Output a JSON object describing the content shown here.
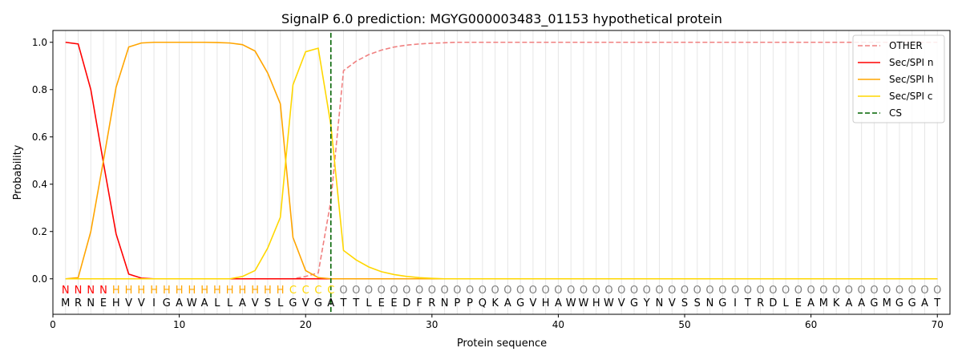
{
  "chart_data": {
    "type": "line",
    "title": "SignalP 6.0 prediction: MGYG000003483_01153 hypothetical protein",
    "xlabel": "Protein sequence",
    "ylabel": "Probability",
    "xlim": [
      0,
      71
    ],
    "ylim": [
      -0.15,
      1.05
    ],
    "xticks": [
      0,
      10,
      20,
      30,
      40,
      50,
      60,
      70
    ],
    "yticks": [
      "0.0",
      "0.2",
      "0.4",
      "0.6",
      "0.8",
      "1.0"
    ],
    "legend_position": "top-right",
    "sequence": [
      "M",
      "R",
      "N",
      "E",
      "H",
      "V",
      "V",
      "I",
      "G",
      "A",
      "W",
      "A",
      "L",
      "L",
      "A",
      "V",
      "S",
      "L",
      "G",
      "V",
      "G",
      "A",
      "T",
      "T",
      "L",
      "E",
      "E",
      "D",
      "F",
      "R",
      "N",
      "P",
      "P",
      "Q",
      "K",
      "A",
      "G",
      "V",
      "H",
      "A",
      "W",
      "W",
      "H",
      "W",
      "V",
      "G",
      "Y",
      "N",
      "V",
      "S",
      "S",
      "N",
      "G",
      "I",
      "T",
      "R",
      "D",
      "L",
      "E",
      "A",
      "M",
      "K",
      "A",
      "A",
      "G",
      "M",
      "G",
      "G",
      "A",
      "T"
    ],
    "labels": "NNNNHHHHHHHHHHHHHHCCCCOOOOOOOOOOOOOOOOOOOOOOOOOOOOOOOOOOOOOOOOOOOOOOOO",
    "label_colors": {
      "N": "#ff0000",
      "H": "#ffa500",
      "C": "#ffd700",
      "O": "#808080"
    },
    "series": [
      {
        "name": "OTHER",
        "color": "#f08080",
        "dash": true,
        "values": [
          0,
          0,
          0,
          0,
          0,
          0,
          0,
          0,
          0,
          0,
          0,
          0,
          0,
          0,
          0,
          0,
          0,
          0,
          0,
          0.01,
          0.025,
          0.33,
          0.88,
          0.92,
          0.948,
          0.967,
          0.98,
          0.988,
          0.993,
          0.996,
          0.998,
          1,
          1,
          1,
          1,
          1,
          1,
          1,
          1,
          1,
          1,
          1,
          1,
          1,
          1,
          1,
          1,
          1,
          1,
          1,
          1,
          1,
          1,
          1,
          1,
          1,
          1,
          1,
          1,
          1,
          1,
          1,
          1,
          1,
          1,
          1,
          1,
          1,
          1,
          1
        ]
      },
      {
        "name": "Sec/SPI n",
        "color": "#ff0000",
        "values": [
          1.0,
          0.993,
          0.8,
          0.49,
          0.19,
          0.02,
          0.003,
          0,
          0,
          0,
          0,
          0,
          0,
          0,
          0,
          0,
          0,
          0,
          0,
          0,
          0,
          0,
          0,
          0,
          0,
          0,
          0,
          0,
          0,
          0,
          0,
          0,
          0,
          0,
          0,
          0,
          0,
          0,
          0,
          0,
          0,
          0,
          0,
          0,
          0,
          0,
          0,
          0,
          0,
          0,
          0,
          0,
          0,
          0,
          0,
          0,
          0,
          0,
          0,
          0,
          0,
          0,
          0,
          0,
          0,
          0,
          0,
          0,
          0,
          0
        ]
      },
      {
        "name": "Sec/SPI h",
        "color": "#ffa500",
        "values": [
          0,
          0.005,
          0.2,
          0.5,
          0.81,
          0.98,
          0.997,
          1,
          1,
          1,
          1,
          1,
          0.999,
          0.997,
          0.99,
          0.963,
          0.87,
          0.74,
          0.175,
          0.035,
          0.005,
          0,
          0,
          0,
          0,
          0,
          0,
          0,
          0,
          0,
          0,
          0,
          0,
          0,
          0,
          0,
          0,
          0,
          0,
          0,
          0,
          0,
          0,
          0,
          0,
          0,
          0,
          0,
          0,
          0,
          0,
          0,
          0,
          0,
          0,
          0,
          0,
          0,
          0,
          0,
          0,
          0,
          0,
          0,
          0,
          0,
          0,
          0,
          0,
          0
        ]
      },
      {
        "name": "Sec/SPI c",
        "color": "#ffd700",
        "values": [
          0,
          0,
          0,
          0,
          0,
          0,
          0,
          0,
          0,
          0,
          0,
          0,
          0,
          0,
          0.01,
          0.035,
          0.13,
          0.26,
          0.82,
          0.96,
          0.975,
          0.65,
          0.12,
          0.08,
          0.05,
          0.03,
          0.018,
          0.01,
          0.005,
          0.002,
          0,
          0,
          0,
          0,
          0,
          0,
          0,
          0,
          0,
          0,
          0,
          0,
          0,
          0,
          0,
          0,
          0,
          0,
          0,
          0,
          0,
          0,
          0,
          0,
          0,
          0,
          0,
          0,
          0,
          0,
          0,
          0,
          0,
          0,
          0,
          0,
          0,
          0,
          0,
          0
        ]
      }
    ],
    "cs": {
      "name": "CS",
      "position": 22,
      "color": "#006400"
    }
  }
}
